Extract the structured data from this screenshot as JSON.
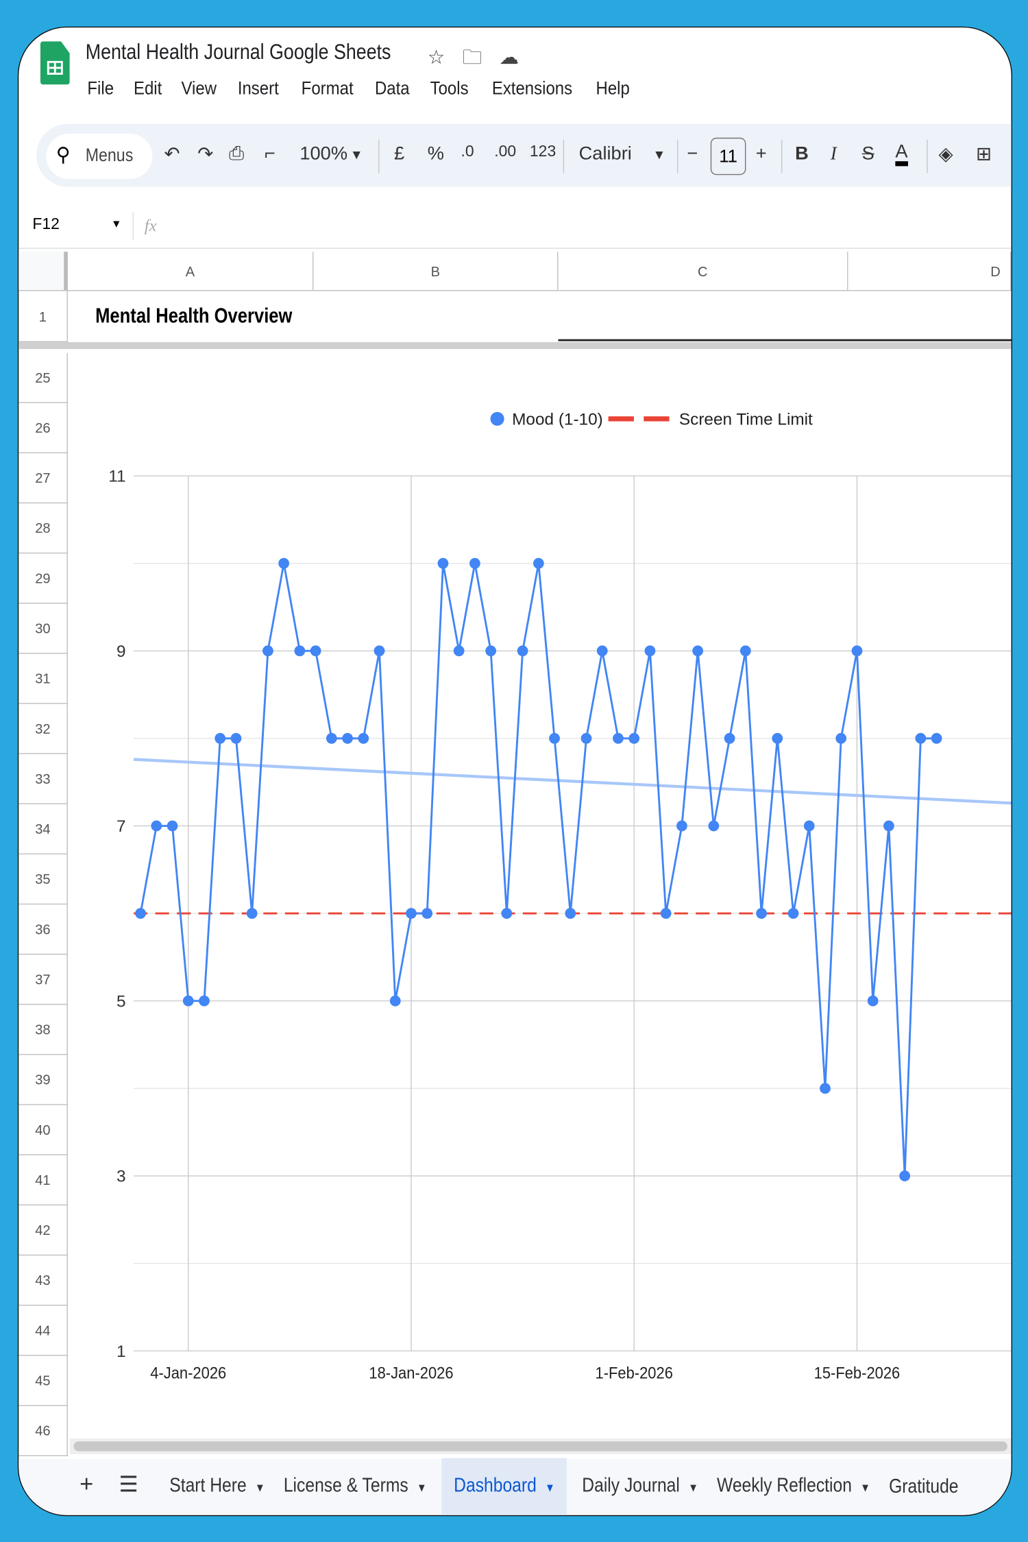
{
  "app": {
    "title": "Mental Health Journal Google Sheets"
  },
  "menu": [
    "File",
    "Edit",
    "View",
    "Insert",
    "Format",
    "Data",
    "Tools",
    "Extensions",
    "Help"
  ],
  "toolbar": {
    "search_label": "Menus",
    "zoom": "100%",
    "currency": "£",
    "percent": "%",
    "dec_decrease": ".0",
    "dec_increase": ".00",
    "number_format": "123",
    "font": "Calibri",
    "font_size": "11",
    "bold": "B",
    "italic": "I",
    "text_color": "A",
    "text_color_value": "#000000"
  },
  "formula_bar": {
    "cell_ref": "F12",
    "fx": "fx",
    "value": ""
  },
  "columns": [
    "A",
    "B",
    "C",
    "D"
  ],
  "row1": {
    "number": "1",
    "text": "Mental Health Overview"
  },
  "rows": [
    "25",
    "26",
    "27",
    "28",
    "29",
    "30",
    "31",
    "32",
    "33",
    "34",
    "35",
    "36",
    "37",
    "38",
    "39",
    "40",
    "41",
    "42",
    "43",
    "44",
    "45",
    "46"
  ],
  "chart_data": {
    "type": "line",
    "title": "",
    "legend": {
      "position": "top",
      "entries": [
        "Mood (1-10)",
        "Screen Time Limit"
      ]
    },
    "ylim": [
      1,
      11
    ],
    "y_ticks": [
      "1",
      "3",
      "5",
      "7",
      "9",
      "11"
    ],
    "x_ticks": [
      "4-Jan-2026",
      "18-Jan-2026",
      "1-Feb-2026",
      "15-Feb-2026"
    ],
    "x_start": "2026-01-01",
    "grid": true,
    "series": [
      {
        "name": "Mood (1-10)",
        "color": "#4285f4",
        "markers": true,
        "values": [
          6,
          7,
          7,
          5,
          5,
          8,
          8,
          6,
          9,
          10,
          9,
          9,
          8,
          8,
          8,
          9,
          5,
          6,
          6,
          10,
          9,
          10,
          9,
          6,
          9,
          10,
          8,
          6,
          8,
          9,
          8,
          8,
          9,
          6,
          7,
          9,
          7,
          8,
          9,
          6,
          8,
          6,
          7,
          4,
          8,
          9,
          5,
          7,
          3,
          8,
          8
        ]
      },
      {
        "name": "Screen Time Limit",
        "color": "#ea4335",
        "style": "dashed",
        "value": 6
      }
    ],
    "trendline": {
      "color": "#a8c7fa",
      "start": 7.76,
      "end": 7.26
    }
  },
  "sheet_tabs": [
    {
      "label": "Start Here",
      "active": false
    },
    {
      "label": "License & Terms",
      "active": false
    },
    {
      "label": "Dashboard",
      "active": true
    },
    {
      "label": "Daily Journal",
      "active": false
    },
    {
      "label": "Weekly Reflection",
      "active": false
    },
    {
      "label": "Gratitude",
      "active": false
    }
  ],
  "colors": {
    "accent": "#0b57d0",
    "frame": "#29a8e0",
    "brand": "#1fa463"
  }
}
